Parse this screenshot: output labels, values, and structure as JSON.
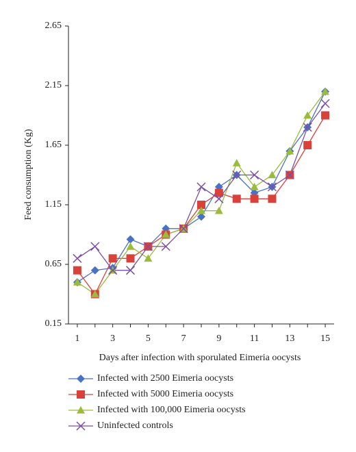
{
  "chart_data": {
    "type": "line",
    "x_label": "Days after infection with sporulated Eimeria oocysts",
    "y_label": "Feed consumption (Kg)",
    "x": [
      1,
      2,
      3,
      4,
      5,
      6,
      7,
      8,
      9,
      10,
      11,
      12,
      13,
      14,
      15
    ],
    "xlim": [
      0.5,
      15.5
    ],
    "xticks": [
      1,
      3,
      5,
      7,
      9,
      11,
      13,
      15
    ],
    "ylim": [
      0.15,
      2.65
    ],
    "yticks": [
      0.15,
      0.65,
      1.15,
      1.65,
      2.15,
      2.65
    ],
    "legend": "bottom",
    "series": [
      {
        "name": "Infected with 2500 Eimeria oocysts",
        "color": "#4a72c4",
        "marker": "diamond",
        "values": [
          0.5,
          0.6,
          0.62,
          0.86,
          0.8,
          0.95,
          0.95,
          1.05,
          1.3,
          1.4,
          1.25,
          1.3,
          1.6,
          1.8,
          2.1
        ]
      },
      {
        "name": "Infected with 5000 Eimeria oocysts",
        "color": "#d9423a",
        "marker": "square",
        "values": [
          0.6,
          0.4,
          0.7,
          0.7,
          0.8,
          0.9,
          0.95,
          1.15,
          1.25,
          1.2,
          1.2,
          1.2,
          1.4,
          1.65,
          1.9
        ]
      },
      {
        "name": "Infected with 100,000 Eimeria oocysts",
        "color": "#9bbb3c",
        "marker": "triangle",
        "values": [
          0.5,
          0.4,
          0.6,
          0.8,
          0.7,
          0.9,
          0.95,
          1.1,
          1.1,
          1.5,
          1.3,
          1.4,
          1.6,
          1.9,
          2.1
        ]
      },
      {
        "name": "Uninfected controls",
        "color": "#7a4ea3",
        "marker": "x",
        "values": [
          0.7,
          0.8,
          0.6,
          0.6,
          0.8,
          0.8,
          0.95,
          1.3,
          1.2,
          1.4,
          1.4,
          1.3,
          1.4,
          1.8,
          2.0
        ]
      }
    ]
  }
}
